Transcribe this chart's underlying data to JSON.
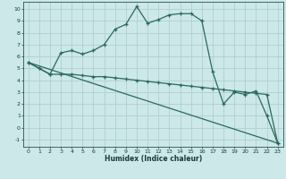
{
  "background_color": "#cce8e8",
  "grid_color": "#b0cfcf",
  "line_color": "#2a6a5a",
  "xlim": [
    -0.5,
    23.5
  ],
  "ylim": [
    -1.6,
    10.6
  ],
  "xticks": [
    0,
    1,
    2,
    3,
    4,
    5,
    6,
    7,
    8,
    9,
    10,
    11,
    12,
    13,
    14,
    15,
    16,
    17,
    18,
    19,
    20,
    21,
    22,
    23
  ],
  "yticks": [
    -1,
    0,
    1,
    2,
    3,
    4,
    5,
    6,
    7,
    8,
    9,
    10
  ],
  "xlabel": "Humidex (Indice chaleur)",
  "series": [
    {
      "x": [
        0,
        1,
        2,
        3,
        4,
        5,
        6,
        7,
        8,
        9,
        10,
        11,
        12,
        13,
        14,
        15,
        16,
        17,
        18,
        19,
        20,
        21,
        22,
        23
      ],
      "y": [
        5.5,
        5.0,
        4.5,
        4.5,
        4.5,
        4.4,
        4.3,
        4.3,
        4.2,
        4.1,
        4.0,
        3.9,
        3.8,
        3.7,
        3.6,
        3.5,
        3.4,
        3.3,
        3.2,
        3.1,
        3.0,
        2.9,
        2.8,
        -1.3
      ],
      "marker": true
    },
    {
      "x": [
        0,
        1,
        2,
        3,
        4,
        5,
        6,
        7,
        8,
        9,
        10,
        11,
        12,
        13,
        14,
        15,
        16,
        17,
        18,
        19,
        20,
        21,
        22,
        23
      ],
      "y": [
        5.5,
        5.0,
        4.5,
        6.3,
        6.5,
        6.2,
        6.5,
        7.0,
        8.3,
        8.7,
        10.2,
        8.8,
        9.1,
        9.5,
        9.6,
        9.6,
        9.0,
        4.7,
        2.0,
        3.0,
        2.8,
        3.1,
        1.0,
        -1.3
      ],
      "marker": true
    },
    {
      "x": [
        0,
        23
      ],
      "y": [
        5.5,
        -1.3
      ],
      "marker": false
    }
  ]
}
